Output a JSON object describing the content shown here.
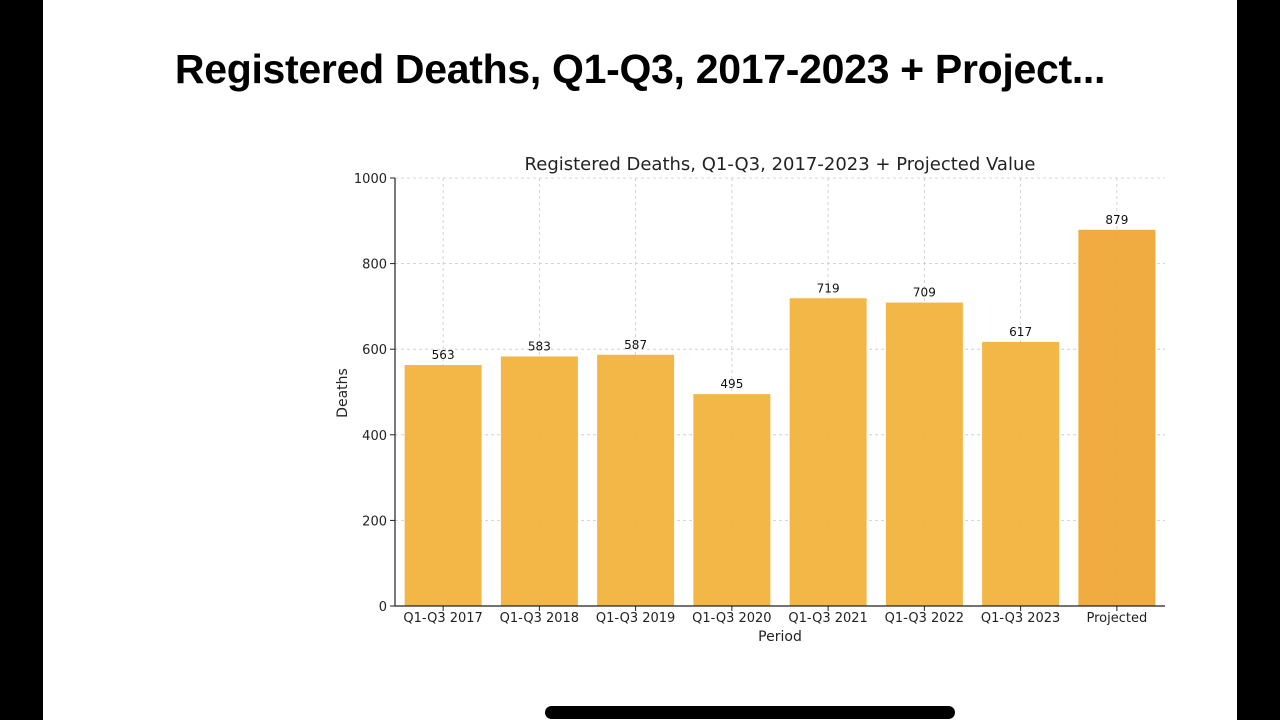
{
  "header": {
    "title": "Registered Deaths, Q1-Q3, 2017-2023 + Project..."
  },
  "chart_data": {
    "type": "bar",
    "title": "Registered Deaths, Q1-Q3, 2017-2023 + Projected Value",
    "xlabel": "Period",
    "ylabel": "Deaths",
    "categories": [
      "Q1-Q3 2017",
      "Q1-Q3 2018",
      "Q1-Q3 2019",
      "Q1-Q3 2020",
      "Q1-Q3 2021",
      "Q1-Q3 2022",
      "Q1-Q3 2023",
      "Projected"
    ],
    "values": [
      563,
      583,
      587,
      495,
      719,
      709,
      617,
      879
    ],
    "data_labels": [
      "563",
      "583",
      "587",
      "495",
      "719",
      "709",
      "617",
      "879"
    ],
    "ylim": [
      0,
      1000
    ],
    "yticks": [
      0,
      200,
      400,
      600,
      800,
      1000
    ],
    "ytick_labels": [
      "0",
      "200",
      "400",
      "600",
      "800",
      "1000"
    ],
    "grid": true,
    "colors": {
      "bar": "#F2B33D",
      "projected": "#EFA737",
      "grid": "#c8c8c8",
      "text": "#222222"
    }
  }
}
